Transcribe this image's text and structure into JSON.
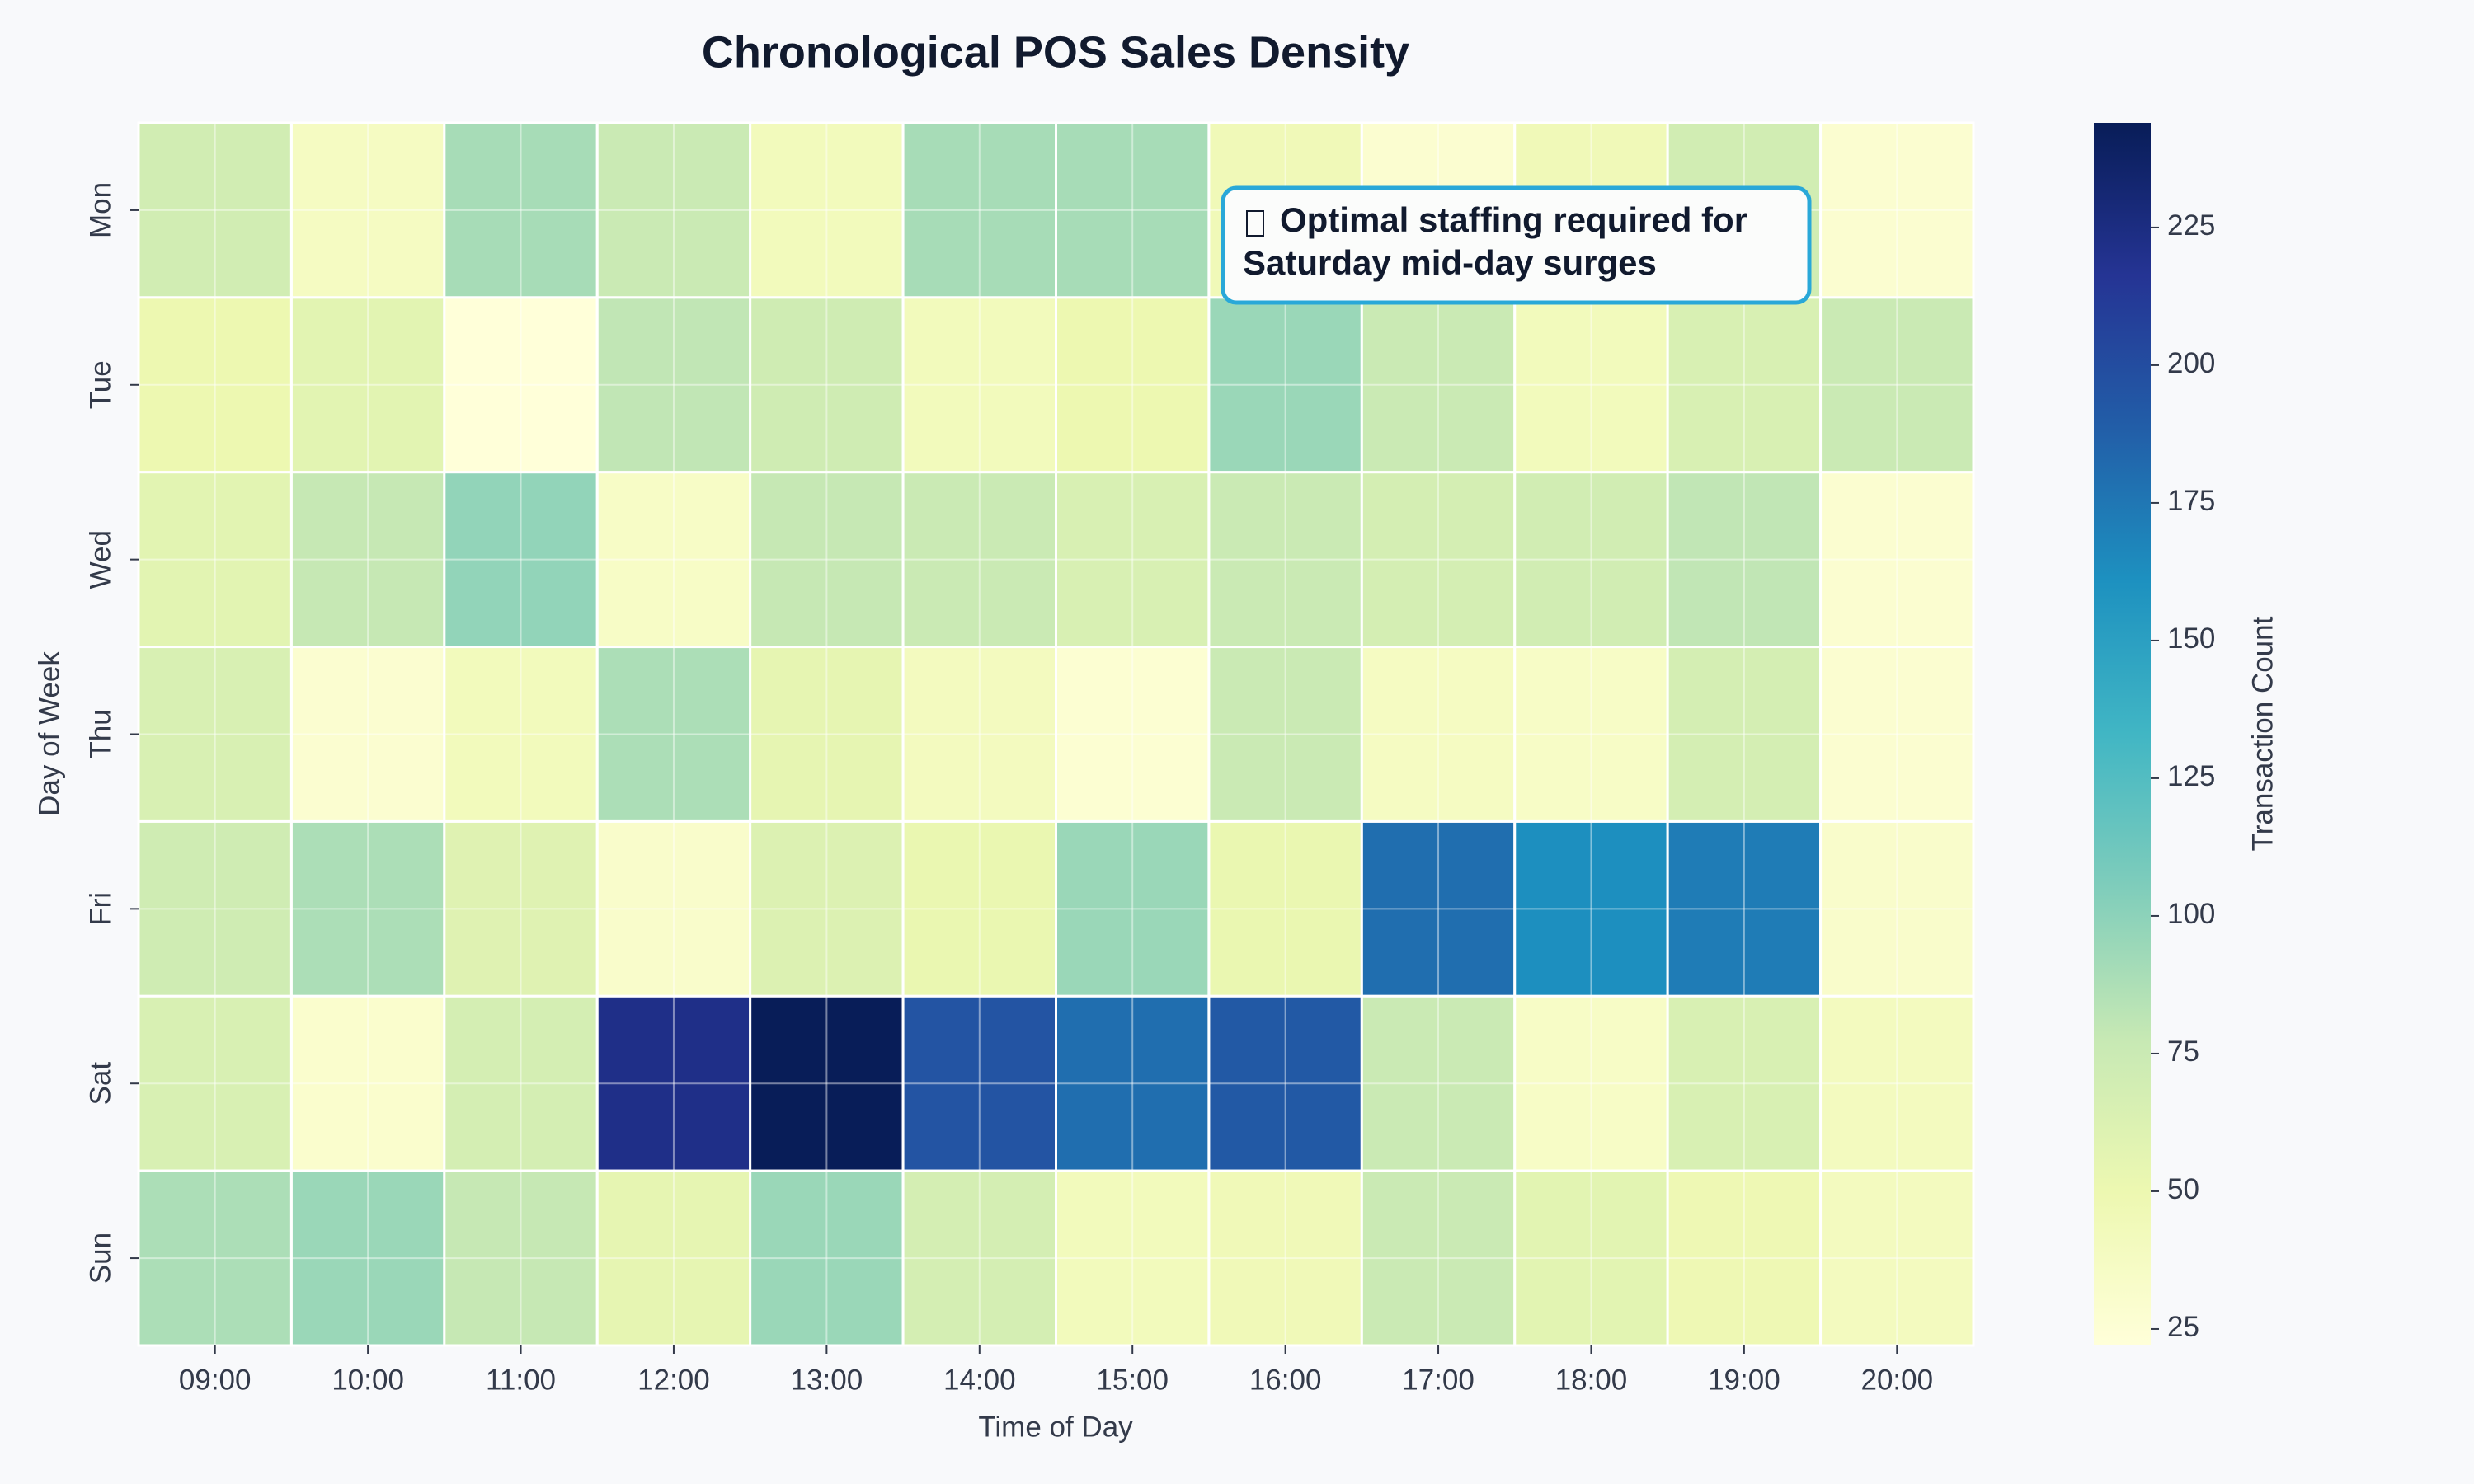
{
  "chart_data": {
    "type": "heatmap",
    "title": "Chronological POS Sales Density",
    "x_label": "Time of Day",
    "y_label": "Day of Week",
    "x_categories": [
      "09:00",
      "10:00",
      "11:00",
      "12:00",
      "13:00",
      "14:00",
      "15:00",
      "16:00",
      "17:00",
      "18:00",
      "19:00",
      "20:00"
    ],
    "y_categories": [
      "Mon",
      "Tue",
      "Wed",
      "Thu",
      "Fri",
      "Sat",
      "Sun"
    ],
    "values": [
      [
        70,
        38,
        90,
        75,
        42,
        90,
        90,
        45,
        28,
        45,
        70,
        28
      ],
      [
        50,
        58,
        22,
        80,
        72,
        42,
        50,
        95,
        75,
        42,
        65,
        75
      ],
      [
        58,
        78,
        98,
        35,
        78,
        75,
        65,
        75,
        68,
        70,
        80,
        28
      ],
      [
        65,
        28,
        42,
        88,
        55,
        40,
        27,
        75,
        38,
        35,
        68,
        28
      ],
      [
        72,
        88,
        60,
        32,
        62,
        52,
        95,
        52,
        180,
        162,
        172,
        32
      ],
      [
        65,
        30,
        68,
        222,
        244,
        195,
        180,
        192,
        75,
        35,
        65,
        40
      ],
      [
        88,
        95,
        78,
        55,
        95,
        68,
        42,
        45,
        75,
        58,
        48,
        40
      ]
    ],
    "colormap": "YlGnBu",
    "colorbar_label": "Transaction Count",
    "clim": [
      22,
      244
    ],
    "cticks": [
      25,
      50,
      75,
      100,
      125,
      150,
      175,
      200,
      225
    ],
    "grid": true,
    "annotation": [
      "Optimal staffing required for",
      "Saturday mid-day surges"
    ]
  }
}
